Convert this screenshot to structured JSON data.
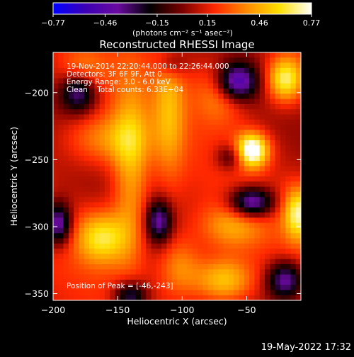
{
  "chart_data": {
    "type": "heatmap",
    "title": "Reconstructed RHESSI Image",
    "xlabel": "Heliocentric X (arcsec)",
    "ylabel": "Heliocentric Y (arcsec)",
    "xlim": [
      -200,
      -8
    ],
    "ylim": [
      -355,
      -170
    ],
    "x_ticks": [
      -200,
      -150,
      -100,
      -50
    ],
    "x_tick_labels": [
      "−200",
      "−150",
      "−100",
      "−50"
    ],
    "y_ticks": [
      -200,
      -250,
      -300,
      -350
    ],
    "y_tick_labels": [
      "−200",
      "−250",
      "−300",
      "−350"
    ],
    "colorbar": {
      "min": -0.77,
      "max": 0.77,
      "ticks": [
        -0.77,
        -0.46,
        -0.15,
        0.15,
        0.46,
        0.77
      ],
      "tick_labels": [
        "−0.77",
        "−0.46",
        "−0.15",
        "0.15",
        "0.46",
        "0.77"
      ],
      "unit_label": "(photons cm⁻² s⁻¹ asec⁻²)",
      "colormap_stops": [
        "#0000ff",
        "#3c00b4",
        "#6a0aa0",
        "#000000",
        "#7a0000",
        "#ff2800",
        "#ff8c00",
        "#ffe000",
        "#ffffff"
      ]
    },
    "annotations": [
      "19-Nov-2014 22:20:44.000 to 22:26:44.000",
      "Detectors: 3F 6F 9F, Att 0",
      "Energy Range: 3.0 - 6.0 keV",
      "Clean    Total counts: 6.33E+04"
    ],
    "peak_label": "Position of Peak = [-46,-243]",
    "peak_position": [
      -46,
      -243
    ],
    "grid": false,
    "sources": [
      {
        "x": -46,
        "y": -243,
        "amp": 0.77,
        "sx": 9,
        "sy": 9
      },
      {
        "x": -20,
        "y": -190,
        "amp": 0.6,
        "sx": 10,
        "sy": 12
      },
      {
        "x": -10,
        "y": -290,
        "amp": 0.55,
        "sx": 8,
        "sy": 14
      },
      {
        "x": -162,
        "y": -308,
        "amp": 0.5,
        "sx": 14,
        "sy": 14
      },
      {
        "x": -68,
        "y": -340,
        "amp": 0.45,
        "sx": 16,
        "sy": 12
      },
      {
        "x": -178,
        "y": -188,
        "amp": 0.35,
        "sx": 12,
        "sy": 12
      },
      {
        "x": -140,
        "y": -260,
        "amp": 0.35,
        "sx": 10,
        "sy": 50
      },
      {
        "x": -110,
        "y": -210,
        "amp": 0.3,
        "sx": 9,
        "sy": 40
      },
      {
        "x": -102,
        "y": -330,
        "amp": 0.3,
        "sx": 12,
        "sy": 16
      },
      {
        "x": -160,
        "y": -235,
        "amp": 0.3,
        "sx": 22,
        "sy": 14
      },
      {
        "x": -62,
        "y": -300,
        "amp": 0.3,
        "sx": 18,
        "sy": 12
      },
      {
        "x": -70,
        "y": -200,
        "amp": 0.3,
        "sx": 14,
        "sy": 16
      },
      {
        "x": -180,
        "y": -198,
        "amp": -0.65,
        "sx": 10,
        "sy": 11
      },
      {
        "x": -58,
        "y": -192,
        "amp": -0.7,
        "sx": 11,
        "sy": 10
      },
      {
        "x": -62,
        "y": -248,
        "amp": -0.3,
        "sx": 8,
        "sy": 7
      },
      {
        "x": -46,
        "y": -282,
        "amp": -0.65,
        "sx": 12,
        "sy": 8
      },
      {
        "x": -196,
        "y": -298,
        "amp": -0.6,
        "sx": 7,
        "sy": 11
      },
      {
        "x": -118,
        "y": -296,
        "amp": -0.5,
        "sx": 7,
        "sy": 11
      },
      {
        "x": -140,
        "y": -352,
        "amp": -0.5,
        "sx": 9,
        "sy": 8
      },
      {
        "x": -20,
        "y": -340,
        "amp": -0.55,
        "sx": 10,
        "sy": 10
      },
      {
        "x": -108,
        "y": -178,
        "amp": -0.25,
        "sx": 8,
        "sy": 8
      }
    ]
  },
  "footer_timestamp": "19-May-2022 17:32"
}
